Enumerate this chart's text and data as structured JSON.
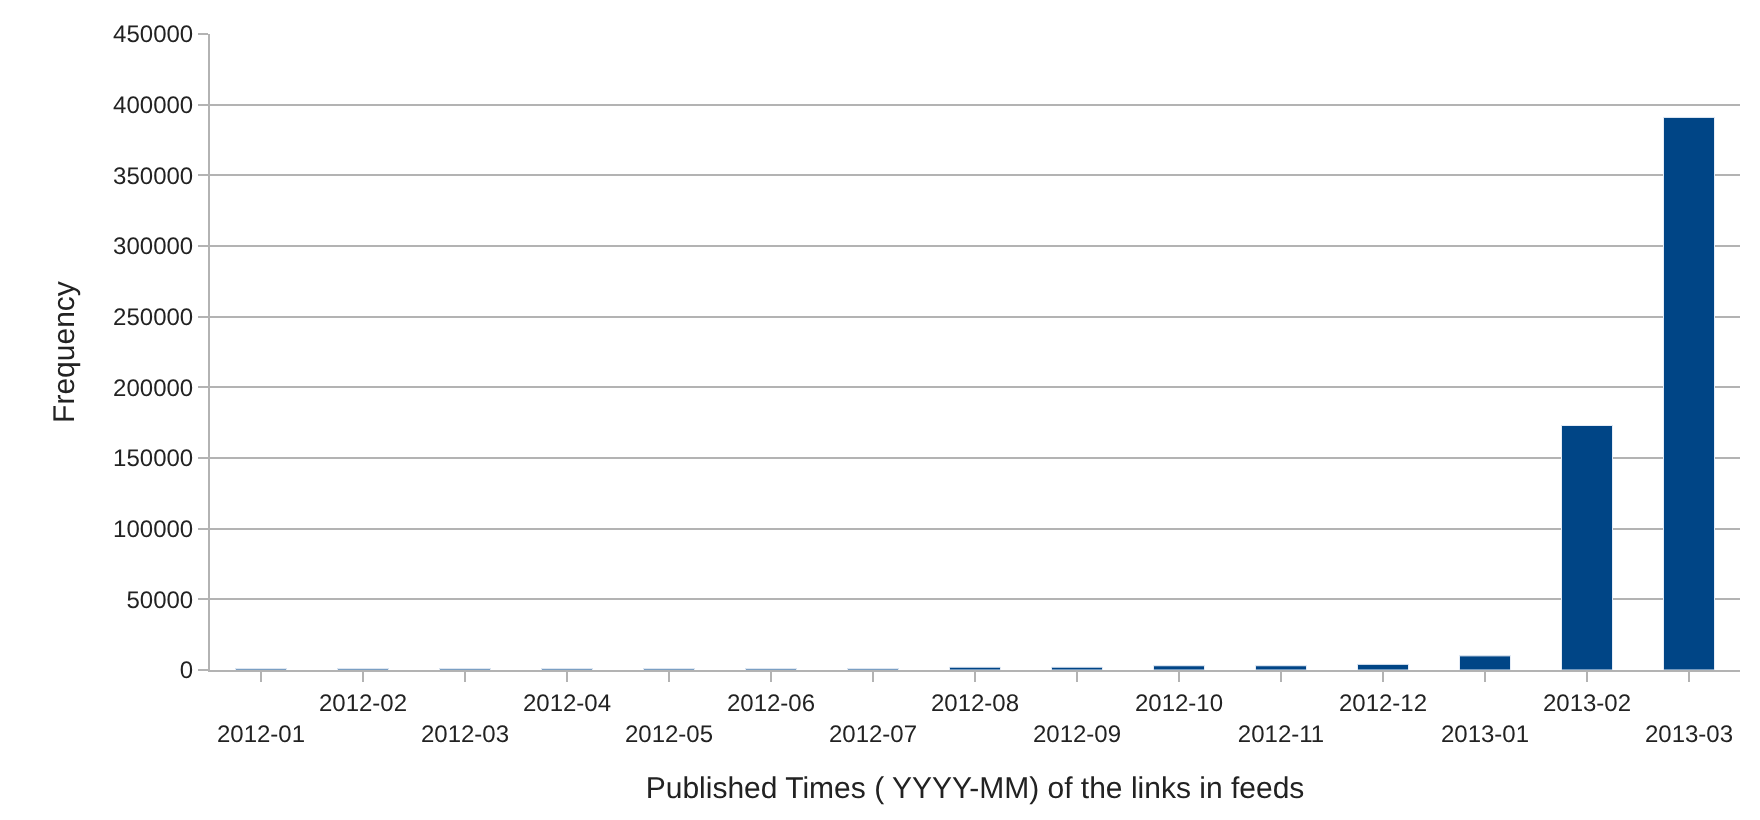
{
  "chart_data": {
    "type": "bar",
    "xlabel": "Published Times ( YYYY-MM) of the links in feeds",
    "ylabel": "Frequency",
    "categories": [
      "2012-01",
      "2012-02",
      "2012-03",
      "2012-04",
      "2012-05",
      "2012-06",
      "2012-07",
      "2012-08",
      "2012-09",
      "2012-10",
      "2012-11",
      "2012-12",
      "2013-01",
      "2013-02",
      "2013-03"
    ],
    "values": [
      1000,
      1000,
      1000,
      1000,
      1000,
      1000,
      1000,
      2000,
      2000,
      3000,
      3000,
      4000,
      10000,
      173000,
      391000
    ],
    "color": "#004586",
    "ylim": [
      0,
      450000
    ],
    "yticks": [
      0,
      50000,
      100000,
      150000,
      200000,
      250000,
      300000,
      350000,
      400000,
      450000
    ],
    "grid": "y",
    "legend": false
  }
}
